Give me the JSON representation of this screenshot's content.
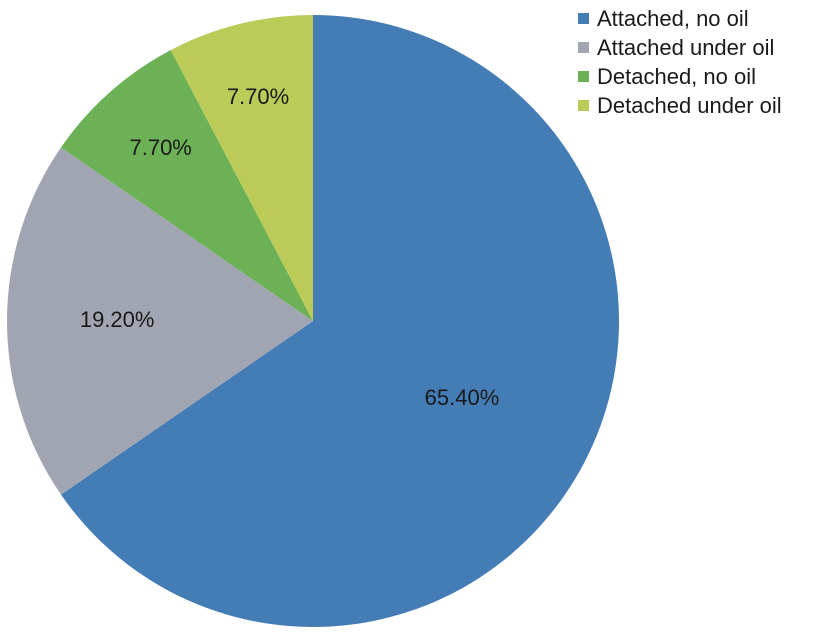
{
  "chart_data": {
    "type": "pie",
    "categories": [
      "Attached, no oil",
      "Attached under oil",
      "Detached, no oil",
      "Detached under oil"
    ],
    "values": [
      65.4,
      19.2,
      7.7,
      7.7
    ],
    "labels": [
      "65.40%",
      "19.20%",
      "7.70%",
      "7.70%"
    ],
    "colors": [
      "#447DB5",
      "#A1A5B1",
      "#6CB155",
      "#BACB58"
    ],
    "start_angle": "12 o'clock",
    "direction": "clockwise",
    "legend_position": "top-right"
  }
}
